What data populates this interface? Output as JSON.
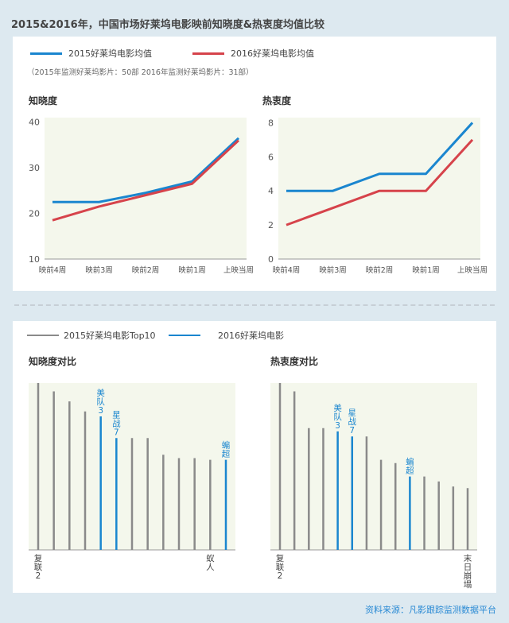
{
  "title": "2015&2016年，中国市场好莱坞电影映前知晓度&热衷度均值比较",
  "top_section": {
    "legend": [
      {
        "label": "2015好莱坞电影均值",
        "color": "#1a86cf"
      },
      {
        "label": "2016好莱坞电影均值",
        "color": "#d6434b"
      }
    ],
    "legend_note": "（2015年监测好莱坞影片：50部  2016年监测好莱坞影片：31部）"
  },
  "bottom_section": {
    "legend": [
      {
        "label": "2015好莱坞电影Top10",
        "color": "#8a8a8a"
      },
      {
        "label": "2016好莱坞电影",
        "color": "#1a86cf"
      }
    ]
  },
  "source": "资料来源：凡影跟踪监测数据平台",
  "chart_data": [
    {
      "type": "line",
      "title": "知晓度",
      "categories": [
        "映前4周",
        "映前3周",
        "映前2周",
        "映前1周",
        "上映当周"
      ],
      "yticks": [
        10,
        20,
        30,
        40
      ],
      "ylim": [
        10,
        41
      ],
      "series": [
        {
          "name": "2015好莱坞电影均值",
          "color": "#1a86cf",
          "values": [
            22.5,
            22.5,
            24.5,
            27,
            36.5
          ]
        },
        {
          "name": "2016好莱坞电影均值",
          "color": "#d6434b",
          "values": [
            18.5,
            21.5,
            24,
            26.5,
            36
          ]
        }
      ]
    },
    {
      "type": "line",
      "title": "热衷度",
      "categories": [
        "映前4周",
        "映前3周",
        "映前2周",
        "映前1周",
        "上映当周"
      ],
      "yticks": [
        0,
        2,
        4,
        6,
        8
      ],
      "ylim": [
        0,
        8.3
      ],
      "series": [
        {
          "name": "2015好莱坞电影均值",
          "color": "#1a86cf",
          "values": [
            4,
            4,
            5,
            5,
            8
          ]
        },
        {
          "name": "2016好莱坞电影均值",
          "color": "#d6434b",
          "values": [
            2,
            3,
            4,
            4,
            7
          ]
        }
      ]
    },
    {
      "type": "bar",
      "title": "知晓度对比",
      "ylim": [
        0,
        100
      ],
      "bars": [
        {
          "value": 100,
          "color": "#8a8a8a",
          "label": "",
          "bottom_label": "复联2"
        },
        {
          "value": 95,
          "color": "#8a8a8a",
          "label": "",
          "bottom_label": ""
        },
        {
          "value": 89,
          "color": "#8a8a8a",
          "label": "",
          "bottom_label": ""
        },
        {
          "value": 83,
          "color": "#8a8a8a",
          "label": "",
          "bottom_label": ""
        },
        {
          "value": 80,
          "color": "#1a86cf",
          "label": "美队3",
          "bottom_label": ""
        },
        {
          "value": 67,
          "color": "#1a86cf",
          "label": "星战7",
          "bottom_label": ""
        },
        {
          "value": 67,
          "color": "#8a8a8a",
          "label": "",
          "bottom_label": ""
        },
        {
          "value": 67,
          "color": "#8a8a8a",
          "label": "",
          "bottom_label": ""
        },
        {
          "value": 57,
          "color": "#8a8a8a",
          "label": "",
          "bottom_label": ""
        },
        {
          "value": 55,
          "color": "#8a8a8a",
          "label": "",
          "bottom_label": ""
        },
        {
          "value": 55,
          "color": "#8a8a8a",
          "label": "",
          "bottom_label": ""
        },
        {
          "value": 54,
          "color": "#8a8a8a",
          "label": "",
          "bottom_label": "蚁人"
        },
        {
          "value": 54,
          "color": "#1a86cf",
          "label": "蝙超",
          "bottom_label": ""
        }
      ]
    },
    {
      "type": "bar",
      "title": "热衷度对比",
      "ylim": [
        0,
        100
      ],
      "bars": [
        {
          "value": 100,
          "color": "#8a8a8a",
          "label": "",
          "bottom_label": "复联2"
        },
        {
          "value": 95,
          "color": "#8a8a8a",
          "label": "",
          "bottom_label": ""
        },
        {
          "value": 73,
          "color": "#8a8a8a",
          "label": "",
          "bottom_label": ""
        },
        {
          "value": 73,
          "color": "#8a8a8a",
          "label": "",
          "bottom_label": ""
        },
        {
          "value": 71,
          "color": "#1a86cf",
          "label": "美队3",
          "bottom_label": ""
        },
        {
          "value": 68,
          "color": "#1a86cf",
          "label": "星战7",
          "bottom_label": ""
        },
        {
          "value": 68,
          "color": "#8a8a8a",
          "label": "",
          "bottom_label": ""
        },
        {
          "value": 54,
          "color": "#8a8a8a",
          "label": "",
          "bottom_label": ""
        },
        {
          "value": 52,
          "color": "#8a8a8a",
          "label": "",
          "bottom_label": ""
        },
        {
          "value": 44,
          "color": "#1a86cf",
          "label": "蝙超",
          "bottom_label": ""
        },
        {
          "value": 44,
          "color": "#8a8a8a",
          "label": "",
          "bottom_label": ""
        },
        {
          "value": 41,
          "color": "#8a8a8a",
          "label": "",
          "bottom_label": ""
        },
        {
          "value": 38,
          "color": "#8a8a8a",
          "label": "",
          "bottom_label": ""
        },
        {
          "value": 37,
          "color": "#8a8a8a",
          "label": "",
          "bottom_label": "末日崩塌"
        }
      ]
    }
  ]
}
